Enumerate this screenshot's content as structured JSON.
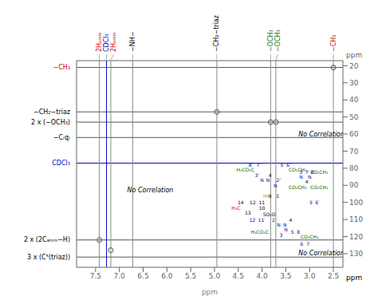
{
  "chart_data": {
    "type": "scatter",
    "xlabel": "ppm",
    "ylabel": "ppm",
    "xlim": [
      2.3,
      7.9
    ],
    "ylim": [
      17,
      138
    ],
    "xticks": [
      7.5,
      {
        "value": 7,
        "label": "7.0"
      },
      6.5,
      {
        "value": 6,
        "label": "6.0"
      },
      5.5,
      {
        "value": 5,
        "label": "5.0"
      },
      4.5,
      {
        "value": 4,
        "label": "4.0"
      },
      3.5,
      {
        "value": 3,
        "label": "3.0"
      },
      2.5
    ],
    "yticks": [
      20,
      30,
      40,
      50,
      60,
      70,
      80,
      90,
      100,
      110,
      120,
      130
    ],
    "grid": false,
    "x": [
      7.42,
      7.18,
      4.95,
      3.82,
      3.71,
      2.5
    ],
    "values": [
      122,
      128,
      47,
      53,
      53,
      21
    ],
    "color": "#555555",
    "marker": "circle",
    "hlines": [
      {
        "y": 21,
        "color": "#555555"
      },
      {
        "y": 47,
        "color": "#555555"
      },
      {
        "y": 53,
        "color": "#555555"
      },
      {
        "y": 62,
        "color": "#555555"
      },
      {
        "y": 77,
        "color": "#0000cc"
      },
      {
        "y": 122,
        "color": "#555555"
      },
      {
        "y": 132,
        "color": "#555555"
      }
    ],
    "vlines": [
      {
        "x": 7.42,
        "color": "#888888"
      },
      {
        "x": 7.27,
        "color": "#0000cc"
      },
      {
        "x": 7.18,
        "color": "#888888"
      },
      {
        "x": 6.72,
        "color": "#888888"
      },
      {
        "x": 4.95,
        "color": "#888888"
      },
      {
        "x": 3.82,
        "color": "#888888"
      },
      {
        "x": 3.71,
        "color": "#888888"
      },
      {
        "x": 2.5,
        "color": "#888888"
      }
    ],
    "top_labels": [
      {
        "text": "2Hₐᵣₒₘ",
        "x": 7.42,
        "color": "#cc0000"
      },
      {
        "text": "CDCl₃",
        "x": 7.27,
        "color": "#0000cc"
      },
      {
        "text": "2Hₐᵣₒₘ",
        "x": 7.18,
        "color": "#cc0000"
      },
      {
        "text": "−NH−",
        "x": 6.72,
        "color": "#000000"
      },
      {
        "text": "−CH₂−triaz",
        "x": 4.95,
        "color": "#000000"
      },
      {
        "text": "−OCH₃",
        "x": 3.82,
        "color": "#006600"
      },
      {
        "text": "−OCH₃",
        "x": 3.71,
        "color": "#006600"
      },
      {
        "text": "−CH₃",
        "x": 2.5,
        "color": "#cc0000"
      }
    ],
    "left_labels": [
      {
        "text": "−CH₃",
        "y": 21,
        "color": "#cc0000"
      },
      {
        "text": "−CH₂−triaz",
        "y": 47,
        "color": "#000000"
      },
      {
        "text": "2 x (−OCH₃)",
        "y": 53,
        "color": "#000000"
      },
      {
        "text": "−C₍q₎",
        "y": 62,
        "color": "#000000"
      },
      {
        "text": "CDCl₃",
        "y": 77,
        "color": "#0000cc"
      },
      {
        "text": "2 x (2Cₐᵣₒₘ−H)",
        "y": 122,
        "color": "#000000"
      },
      {
        "text": "3 x (C⁵(triaz))",
        "y": 132,
        "color": "#000000"
      }
    ],
    "no_correlation": [
      {
        "text": "No Correlation",
        "x": 6.35,
        "y": 93
      },
      {
        "text": "No Correlation",
        "x": 2.75,
        "y": 60
      },
      {
        "text": "No Correlation",
        "x": 2.75,
        "y": 130
      }
    ],
    "annotations": [
      {
        "text": "ppm",
        "color": "#000000"
      },
      {
        "text": "8″  7″",
        "x": 4.15,
        "y": 78,
        "color": "#0000aa"
      },
      {
        "text": "H₃CO₂C",
        "x": 4.35,
        "y": 81,
        "color": "#006600"
      },
      {
        "text": "5″ 6″",
        "x": 3.5,
        "y": 78,
        "color": "#0000aa"
      },
      {
        "text": "CO₂CH₃",
        "x": 3.25,
        "y": 81,
        "color": "#006600"
      },
      {
        "text": "3″",
        "x": 4.1,
        "y": 84,
        "color": "#0000aa"
      },
      {
        "text": "4′",
        "x": 3.82,
        "y": 84,
        "color": "#000000"
      },
      {
        "text": "N",
        "x": 4.0,
        "y": 87,
        "color": "#0000aa"
      },
      {
        "text": "N",
        "x": 3.88,
        "y": 87,
        "color": "#0000aa"
      },
      {
        "text": "2″",
        "x": 3.65,
        "y": 87,
        "color": "#0000aa"
      },
      {
        "text": "N",
        "x": 3.72,
        "y": 90,
        "color": "#0000aa"
      },
      {
        "text": "CO₂CH₃",
        "x": 3.25,
        "y": 91,
        "color": "#006600"
      },
      {
        "text": "3′ 7′ 8′",
        "x": 3.05,
        "y": 82,
        "color": "#0000aa"
      },
      {
        "text": "N",
        "x": 3.18,
        "y": 85,
        "color": "#0000aa"
      },
      {
        "text": "N",
        "x": 3.0,
        "y": 85,
        "color": "#0000aa"
      },
      {
        "text": "CO₂CH₃",
        "x": 2.8,
        "y": 82,
        "color": "#006600"
      },
      {
        "text": "4′",
        "x": 3.05,
        "y": 88,
        "color": "#000000"
      },
      {
        "text": "CO₂CH₃",
        "x": 2.8,
        "y": 91,
        "color": "#006600"
      },
      {
        "text": "5′ 6′",
        "x": 2.9,
        "y": 100,
        "color": "#0000aa"
      },
      {
        "text": "9   1",
        "x": 3.75,
        "y": 96,
        "color": "#000000"
      },
      {
        "text": "HN",
        "x": 3.9,
        "y": 96,
        "color": "#cc8800"
      },
      {
        "text": "14",
        "x": 4.45,
        "y": 100,
        "color": "#000000"
      },
      {
        "text": "H₃C",
        "x": 4.55,
        "y": 103,
        "color": "#cc0000"
      },
      {
        "text": "13",
        "x": 4.3,
        "y": 106,
        "color": "#000000"
      },
      {
        "text": "12  11",
        "x": 4.1,
        "y": 100,
        "color": "#000000"
      },
      {
        "text": "10",
        "x": 4.0,
        "y": 103,
        "color": "#000000"
      },
      {
        "text": "SO₂O",
        "x": 3.85,
        "y": 107,
        "color": "#000000"
      },
      {
        "text": "12′ 11′",
        "x": 4.1,
        "y": 110,
        "color": "#0000aa"
      },
      {
        "text": "2′",
        "x": 3.75,
        "y": 110,
        "color": "#0000aa"
      },
      {
        "text": "N",
        "x": 3.65,
        "y": 113,
        "color": "#0000aa"
      },
      {
        "text": "N",
        "x": 3.52,
        "y": 113,
        "color": "#0000aa"
      },
      {
        "text": "4",
        "x": 3.4,
        "y": 110,
        "color": "#000000"
      },
      {
        "text": "N",
        "x": 3.5,
        "y": 116,
        "color": "#0000aa"
      },
      {
        "text": "3",
        "x": 3.6,
        "y": 119,
        "color": "#0000aa"
      },
      {
        "text": "5  8",
        "x": 3.3,
        "y": 117,
        "color": "#0000aa"
      },
      {
        "text": "H₃CO₂C",
        "x": 4.05,
        "y": 117,
        "color": "#006600"
      },
      {
        "text": "CO₂CH₃",
        "x": 3.0,
        "y": 120,
        "color": "#006600"
      },
      {
        "text": "6  7",
        "x": 3.1,
        "y": 124,
        "color": "#0000aa"
      }
    ]
  }
}
